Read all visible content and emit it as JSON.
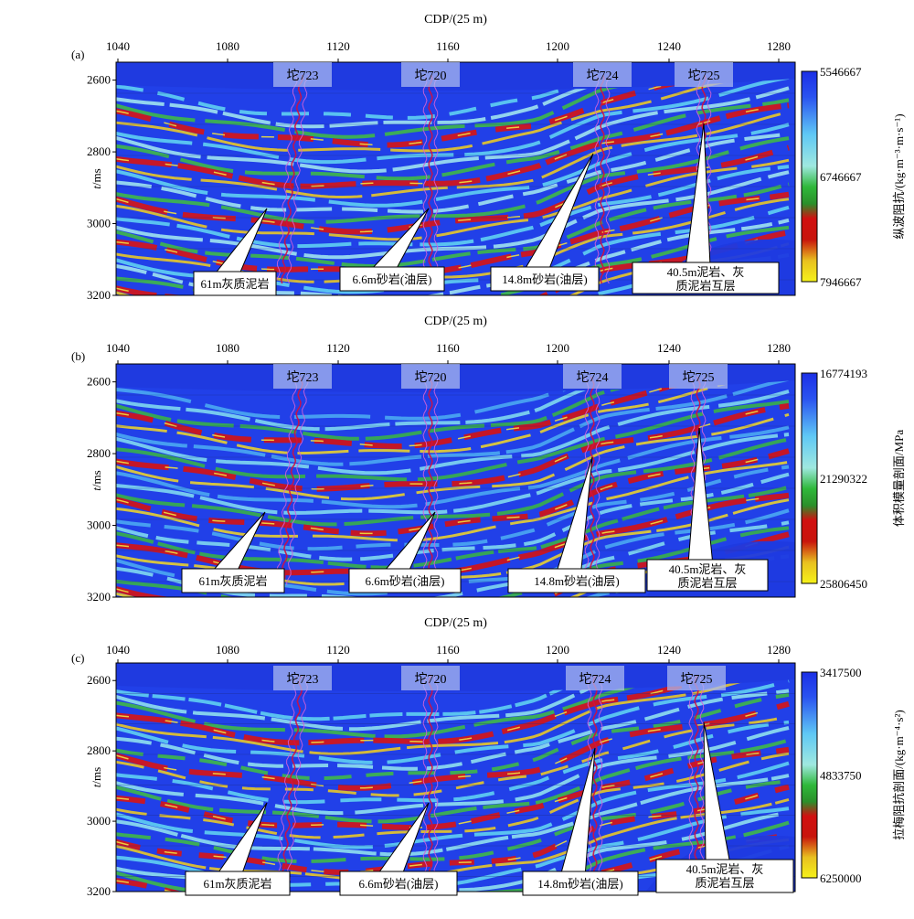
{
  "panels": [
    {
      "id": "a",
      "label": "(a)",
      "xaxis_title": "CDP/(25 m)",
      "x_ticks": [
        "1040",
        "1080",
        "1120",
        "1160",
        "1200",
        "1240",
        "1280"
      ],
      "y_ticks": [
        "2600",
        "2800",
        "3000",
        "3200"
      ],
      "ylabel_italic": "t",
      "ylabel_unit": "/ms",
      "wells": [
        "坨723",
        "坨720",
        "坨724",
        "坨725"
      ],
      "callouts": [
        {
          "line1": "61m灰质泥岩",
          "line2": ""
        },
        {
          "line1": "6.6m砂岩(油层)",
          "line2": ""
        },
        {
          "line1": "14.8m砂岩(油层)",
          "line2": ""
        },
        {
          "line1": "40.5m泥岩、灰",
          "line2": "质泥岩互层"
        }
      ],
      "colorbar": {
        "top": "5546667",
        "mid": "6746667",
        "bottom": "7946667",
        "label": "纵波阻抗/(kg·m⁻³·m·s⁻¹)"
      }
    },
    {
      "id": "b",
      "label": "(b)",
      "xaxis_title": "CDP/(25 m)",
      "x_ticks": [
        "1040",
        "1080",
        "1120",
        "1160",
        "1200",
        "1240",
        "1280"
      ],
      "y_ticks": [
        "2600",
        "2800",
        "3000",
        "3200"
      ],
      "ylabel_italic": "t",
      "ylabel_unit": "/ms",
      "wells": [
        "坨723",
        "坨720",
        "坨724",
        "坨725"
      ],
      "callouts": [
        {
          "line1": "61m灰质泥岩",
          "line2": ""
        },
        {
          "line1": "6.6m砂岩(油层)",
          "line2": ""
        },
        {
          "line1": "14.8m砂岩(油层)",
          "line2": ""
        },
        {
          "line1": "40.5m泥岩、灰",
          "line2": "质泥岩互层"
        }
      ],
      "colorbar": {
        "top": "16774193",
        "mid": "21290322",
        "bottom": "25806450",
        "label": "体积模量剖面/MPa"
      }
    },
    {
      "id": "c",
      "label": "(c)",
      "xaxis_title": "CDP/(25 m)",
      "x_ticks": [
        "1040",
        "1080",
        "1120",
        "1160",
        "1200",
        "1240",
        "1280"
      ],
      "y_ticks": [
        "2600",
        "2800",
        "3000",
        "3200"
      ],
      "ylabel_italic": "t",
      "ylabel_unit": "/ms",
      "wells": [
        "坨723",
        "坨720",
        "坨724",
        "坨725"
      ],
      "callouts": [
        {
          "line1": "61m灰质泥岩",
          "line2": ""
        },
        {
          "line1": "6.6m砂岩(油层)",
          "line2": ""
        },
        {
          "line1": "14.8m砂岩(油层)",
          "line2": ""
        },
        {
          "line1": "40.5m泥岩、灰",
          "line2": "质泥岩互层"
        }
      ],
      "colorbar": {
        "top": "3417500",
        "mid": "4833750",
        "bottom": "6250000",
        "label": "拉梅阻抗剖面/(kg·m⁻⁴·s²)"
      }
    }
  ]
}
